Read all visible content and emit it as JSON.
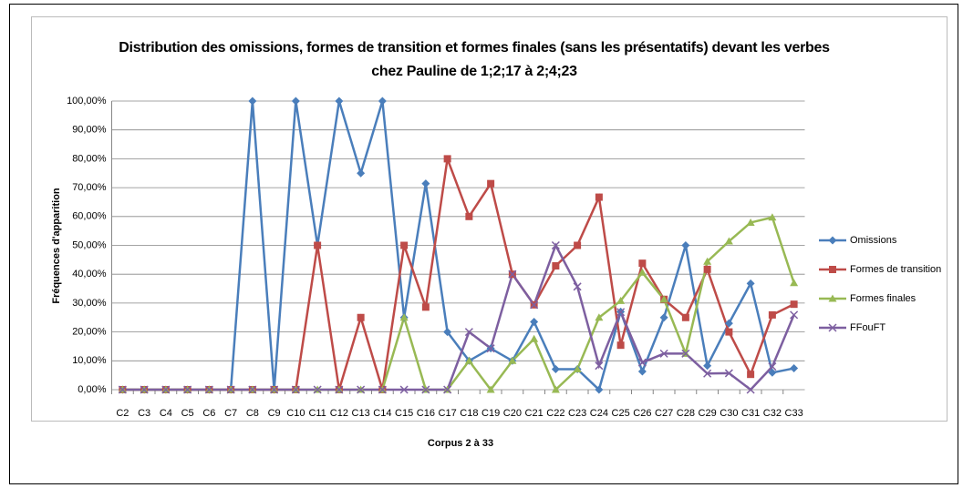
{
  "chart_data": {
    "type": "line",
    "title": "Distribution des omissions, formes de transition et formes finales (sans les présentatifs) devant les verbes chez Pauline de 1;2;17 à 2;4;23",
    "x_label": "Corpus 2 à 33",
    "y_label": "Fréquences d'apparition",
    "categories": [
      "C2",
      "C3",
      "C4",
      "C5",
      "C6",
      "C7",
      "C8",
      "C9",
      "C10",
      "C11",
      "C12",
      "C13",
      "C14",
      "C15",
      "C16",
      "C17",
      "C18",
      "C19",
      "C20",
      "C21",
      "C22",
      "C23",
      "C24",
      "C25",
      "C26",
      "C27",
      "C28",
      "C29",
      "C30",
      "C31",
      "C32",
      "C33"
    ],
    "series": [
      {
        "name": "Omissions",
        "color": "#4a7ebb",
        "marker": "diamond",
        "values": [
          0,
          0,
          0,
          0,
          0,
          0,
          100,
          0,
          100,
          50,
          100,
          75,
          100,
          25,
          71.4,
          20,
          10,
          14.3,
          10,
          23.5,
          7.1,
          7.1,
          0,
          27,
          6.3,
          25,
          50,
          8.3,
          23,
          36.8,
          5.9,
          7.4
        ]
      },
      {
        "name": "Formes de transition",
        "color": "#be4b48",
        "marker": "square",
        "values": [
          0,
          0,
          0,
          0,
          0,
          0,
          0,
          0,
          0,
          50,
          0,
          25,
          0,
          50,
          28.6,
          80,
          60,
          71.4,
          40,
          29.4,
          42.9,
          50,
          66.7,
          15.4,
          43.8,
          31.3,
          25,
          41.7,
          20,
          5.3,
          25.9,
          29.6
        ]
      },
      {
        "name": "Formes finales",
        "color": "#98b954",
        "marker": "triangle",
        "values": [
          0,
          0,
          0,
          0,
          0,
          0,
          0,
          0,
          0,
          0,
          0,
          0,
          0,
          25,
          0,
          0,
          10,
          0,
          10,
          17.6,
          0,
          7.1,
          25,
          30.8,
          40.6,
          31.3,
          12.5,
          44.4,
          51.4,
          57.9,
          59.7,
          37
        ]
      },
      {
        "name": "FFouFT",
        "color": "#7d5fa0",
        "marker": "x",
        "values": [
          0,
          0,
          0,
          0,
          0,
          0,
          0,
          0,
          0,
          0,
          0,
          0,
          0,
          0,
          0,
          0,
          20,
          14.3,
          40,
          29.4,
          50,
          35.7,
          8.3,
          26.9,
          9.4,
          12.5,
          12.5,
          5.6,
          5.7,
          0,
          8,
          25.9
        ]
      }
    ],
    "ylim": [
      0,
      100
    ],
    "yticks": [
      {
        "value": 0,
        "label": "0,00%"
      },
      {
        "value": 10,
        "label": "10,00%"
      },
      {
        "value": 20,
        "label": "20,00%"
      },
      {
        "value": 30,
        "label": "30,00%"
      },
      {
        "value": 40,
        "label": "40,00%"
      },
      {
        "value": 50,
        "label": "50,00%"
      },
      {
        "value": 60,
        "label": "60,00%"
      },
      {
        "value": 70,
        "label": "70,00%"
      },
      {
        "value": 80,
        "label": "80,00%"
      },
      {
        "value": 90,
        "label": "90,00%"
      },
      {
        "value": 100,
        "label": "100,00%"
      }
    ],
    "grid": true,
    "legend": "right"
  }
}
